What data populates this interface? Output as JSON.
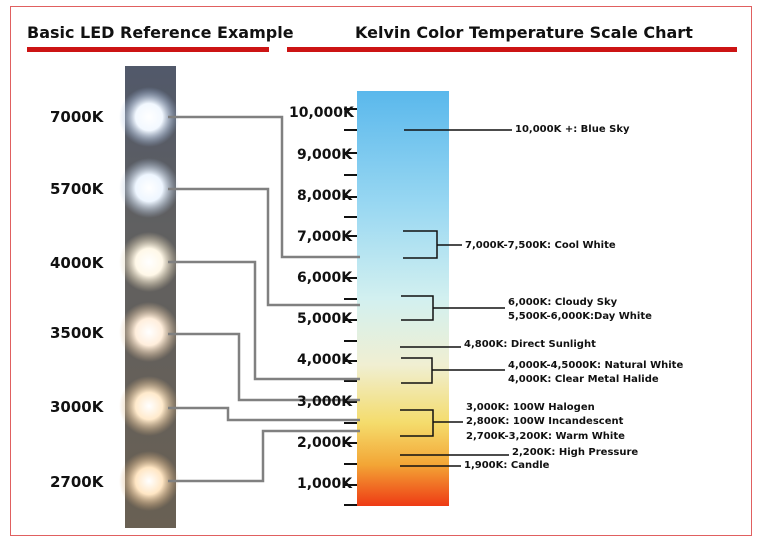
{
  "titles": {
    "left": "Basic LED Reference Example",
    "right": "Kelvin Color Temperature Scale Chart"
  },
  "led_labels": [
    "7000K",
    "5700K",
    "4000K",
    "3500K",
    "3000K",
    "2700K"
  ],
  "scale_labels": [
    "10,000K",
    "9,000K",
    "8,000K",
    "7,000K",
    "6,000K",
    "5,000K",
    "4,000K",
    "3,000K",
    "2,000K",
    "1,000K"
  ],
  "annotations": [
    "10,000K +: Blue Sky",
    "7,000K-7,500K: Cool White",
    "6,000K: Cloudy Sky",
    "5,500K-6,000K:Day White",
    "4,800K: Direct Sunlight",
    "4,000K-4,5000K: Natural White",
    "4,000K: Clear Metal Halide",
    "3,000K: 100W Halogen",
    "2,800K: 100W Incandescent",
    "2,700K-3,200K: Warm White",
    "2,200K: High Pressure",
    "1,900K: Candle"
  ],
  "colors": {
    "accent_bar": "#cc1414",
    "frame": "#e06060",
    "connector": "#808080",
    "gradient_top": "#5ab8ec",
    "gradient_mid": "#d2f0f0",
    "gradient_warm": "#f4dc6c",
    "gradient_bottom": "#ee3a14"
  }
}
